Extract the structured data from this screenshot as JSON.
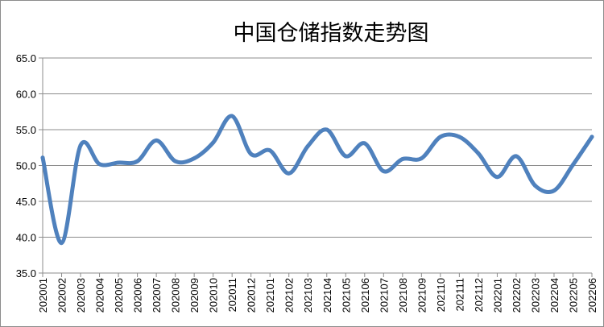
{
  "chart_data": {
    "type": "line",
    "title": "中国仓储指数走势图",
    "xlabel": "",
    "ylabel": "",
    "ylim": [
      35,
      65
    ],
    "yticks": [
      "65.0",
      "60.0",
      "55.0",
      "50.0",
      "45.0",
      "40.0",
      "35.0"
    ],
    "grid": true,
    "legend": "none",
    "categories": [
      "202001",
      "202002",
      "202003",
      "202004",
      "202005",
      "202006",
      "202007",
      "202008",
      "202009",
      "202010",
      "202011",
      "202012",
      "202101",
      "202102",
      "202103",
      "202104",
      "202105",
      "202106",
      "202107",
      "202108",
      "202109",
      "202110",
      "202111",
      "202112",
      "202201",
      "202202",
      "202203",
      "202204",
      "202205",
      "202206"
    ],
    "series": [
      {
        "color": "#4f81bd",
        "values": [
          51.1,
          39.2,
          52.8,
          50.2,
          50.4,
          50.6,
          53.5,
          50.6,
          51.0,
          53.2,
          56.9,
          51.6,
          52.1,
          48.9,
          52.7,
          55.0,
          51.3,
          53.1,
          49.2,
          50.9,
          51.0,
          54.0,
          54.0,
          51.7,
          48.4,
          51.3,
          47.2,
          46.5,
          50.1,
          54.0
        ]
      }
    ]
  }
}
